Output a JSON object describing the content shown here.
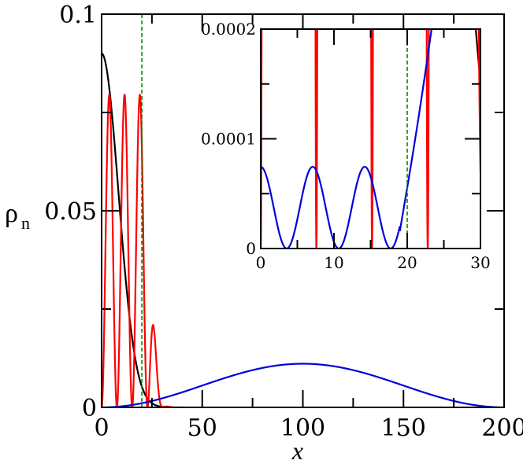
{
  "chart_data": [
    {
      "type": "line",
      "role": "main",
      "xlabel": "x",
      "ylabel_main": "ρ",
      "ylabel_sub": "n",
      "xlim": [
        0,
        200
      ],
      "ylim": [
        0,
        0.1
      ],
      "xticks": [
        {
          "value": 0,
          "label": "0"
        },
        {
          "value": 50,
          "label": "50"
        },
        {
          "value": 100,
          "label": "100"
        },
        {
          "value": 150,
          "label": "150"
        },
        {
          "value": 200,
          "label": "200"
        }
      ],
      "yticks": [
        {
          "value": 0,
          "label": "0"
        },
        {
          "value": 0.05,
          "label": "0.05"
        },
        {
          "value": 0.1,
          "label": "0.1"
        }
      ],
      "minor_xstep": 25,
      "minor_ystep": 0.025,
      "grid": false,
      "colors": {
        "black": "#000000",
        "red": "#ff0000",
        "blue": "#0000dd",
        "green": "#008800"
      },
      "series": [
        {
          "color": "black",
          "curve": "gaussian",
          "amplitude": 0.09,
          "sigma": 8.4,
          "xmax": 35
        },
        {
          "color": "red",
          "curve": "oscillating_gaussian",
          "amplitude": 0.0795,
          "sigma": 21.0,
          "period": 7.6,
          "xmax": 40
        },
        {
          "color": "blue",
          "curve": "sine_squared",
          "amplitude": 0.0111,
          "period": 215,
          "xmin": 0,
          "xmax": 200
        }
      ],
      "vline": {
        "x": 20,
        "color": "green",
        "style": "dashed"
      }
    },
    {
      "type": "line",
      "role": "inset",
      "xlim": [
        0,
        30
      ],
      "ylim": [
        0,
        0.0002
      ],
      "xticks": [
        {
          "value": 0,
          "label": "0"
        },
        {
          "value": 10,
          "label": "10"
        },
        {
          "value": 20,
          "label": "20"
        },
        {
          "value": 30,
          "label": "30"
        }
      ],
      "yticks": [
        {
          "value": 0,
          "label": "0"
        },
        {
          "value": 0.0001,
          "label": "0.0001"
        },
        {
          "value": 0.0002,
          "label": "0.0002"
        }
      ],
      "minor_xstep": 5,
      "minor_ystep": 5e-05,
      "grid": false,
      "series": [
        {
          "color": "black",
          "curve": "gaussian",
          "amplitude": 0.09,
          "sigma": 8.4,
          "xmax": 30
        },
        {
          "color": "red",
          "curve": "oscillating_gaussian",
          "amplitude": 0.0795,
          "sigma": 21.0,
          "period": 7.6,
          "xmax": 30
        },
        {
          "color": "blue",
          "curve": "inset_blue",
          "amplitude": 7.45e-05,
          "period": 7.1,
          "xmax": 30
        }
      ],
      "vline": {
        "x": 20,
        "color": "green",
        "style": "dashed"
      }
    }
  ]
}
